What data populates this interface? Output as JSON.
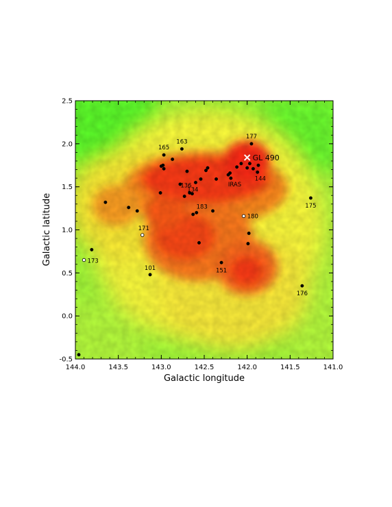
{
  "chart_data": {
    "type": "scatter",
    "title": "",
    "xlabel": "Galactic longitude",
    "ylabel": "Galactic latitude",
    "xlim": [
      144.0,
      141.0
    ],
    "ylim": [
      -0.5,
      2.5
    ],
    "xticks": [
      "144.0",
      "143.5",
      "143.0",
      "142.5",
      "142.0",
      "141.5",
      "141.0"
    ],
    "yticks": [
      "-0.5",
      "0.0",
      "0.5",
      "1.0",
      "1.5",
      "2.0",
      "2.5"
    ],
    "background": "intensity map (green = low, yellow = medium, red = high)",
    "colors": {
      "low": "#7cff32",
      "mid": "#ffff3c",
      "high": "#ff2814"
    },
    "marker": {
      "name": "GL 490",
      "label": "GL 490",
      "l": 142.0,
      "b": 1.84,
      "symbol": "cross"
    },
    "sources": [
      {
        "l": 141.95,
        "b": 2.0,
        "fill": "black",
        "label": "177"
      },
      {
        "l": 142.76,
        "b": 1.94,
        "fill": "black",
        "label": "163"
      },
      {
        "l": 142.97,
        "b": 1.87,
        "fill": "black",
        "label": "165"
      },
      {
        "l": 142.87,
        "b": 1.82,
        "fill": "black",
        "label": ""
      },
      {
        "l": 141.97,
        "b": 1.77,
        "fill": "black",
        "label": ""
      },
      {
        "l": 142.07,
        "b": 1.77,
        "fill": "black",
        "label": ""
      },
      {
        "l": 141.87,
        "b": 1.75,
        "fill": "black",
        "label": ""
      },
      {
        "l": 142.0,
        "b": 1.72,
        "fill": "black",
        "label": ""
      },
      {
        "l": 141.93,
        "b": 1.71,
        "fill": "black",
        "label": ""
      },
      {
        "l": 141.88,
        "b": 1.67,
        "fill": "black",
        "label": "144"
      },
      {
        "l": 142.12,
        "b": 1.73,
        "fill": "black",
        "label": ""
      },
      {
        "l": 142.2,
        "b": 1.66,
        "fill": "black",
        "label": ""
      },
      {
        "l": 142.22,
        "b": 1.64,
        "fill": "black",
        "label": ""
      },
      {
        "l": 142.19,
        "b": 1.6,
        "fill": "black",
        "label": "IRAS"
      },
      {
        "l": 142.36,
        "b": 1.59,
        "fill": "black",
        "label": ""
      },
      {
        "l": 142.46,
        "b": 1.72,
        "fill": "black",
        "label": ""
      },
      {
        "l": 142.48,
        "b": 1.69,
        "fill": "black",
        "label": ""
      },
      {
        "l": 142.54,
        "b": 1.59,
        "fill": "black",
        "label": ""
      },
      {
        "l": 142.6,
        "b": 1.55,
        "fill": "black",
        "label": "136"
      },
      {
        "l": 142.7,
        "b": 1.68,
        "fill": "black",
        "label": ""
      },
      {
        "l": 142.78,
        "b": 1.53,
        "fill": "black",
        "label": ""
      },
      {
        "l": 142.98,
        "b": 1.75,
        "fill": "black",
        "label": ""
      },
      {
        "l": 143.0,
        "b": 1.74,
        "fill": "black",
        "label": ""
      },
      {
        "l": 142.97,
        "b": 1.71,
        "fill": "black",
        "label": ""
      },
      {
        "l": 143.01,
        "b": 1.43,
        "fill": "black",
        "label": ""
      },
      {
        "l": 142.67,
        "b": 1.43,
        "fill": "black",
        "label": ""
      },
      {
        "l": 142.64,
        "b": 1.42,
        "fill": "black",
        "label": "134"
      },
      {
        "l": 142.73,
        "b": 1.39,
        "fill": "black",
        "label": ""
      },
      {
        "l": 142.59,
        "b": 1.2,
        "fill": "black",
        "label": "183"
      },
      {
        "l": 142.63,
        "b": 1.18,
        "fill": "black",
        "label": ""
      },
      {
        "l": 142.4,
        "b": 1.22,
        "fill": "black",
        "label": ""
      },
      {
        "l": 143.38,
        "b": 1.26,
        "fill": "black",
        "label": ""
      },
      {
        "l": 143.28,
        "b": 1.22,
        "fill": "black",
        "label": ""
      },
      {
        "l": 143.65,
        "b": 1.32,
        "fill": "black",
        "label": ""
      },
      {
        "l": 142.04,
        "b": 1.16,
        "fill": "white",
        "label": "180"
      },
      {
        "l": 143.22,
        "b": 0.94,
        "fill": "white",
        "label": "171"
      },
      {
        "l": 141.98,
        "b": 0.96,
        "fill": "black",
        "label": ""
      },
      {
        "l": 141.99,
        "b": 0.84,
        "fill": "black",
        "label": ""
      },
      {
        "l": 142.56,
        "b": 0.85,
        "fill": "black",
        "label": ""
      },
      {
        "l": 143.81,
        "b": 0.77,
        "fill": "black",
        "label": ""
      },
      {
        "l": 143.9,
        "b": 0.65,
        "fill": "white",
        "label": "173"
      },
      {
        "l": 142.3,
        "b": 0.62,
        "fill": "black",
        "label": "151"
      },
      {
        "l": 143.13,
        "b": 0.48,
        "fill": "black",
        "label": "101"
      },
      {
        "l": 141.36,
        "b": 0.35,
        "fill": "black",
        "label": "176"
      },
      {
        "l": 141.26,
        "b": 1.37,
        "fill": "black",
        "label": "175"
      },
      {
        "l": 143.96,
        "b": -0.45,
        "fill": "black",
        "label": ""
      }
    ]
  }
}
